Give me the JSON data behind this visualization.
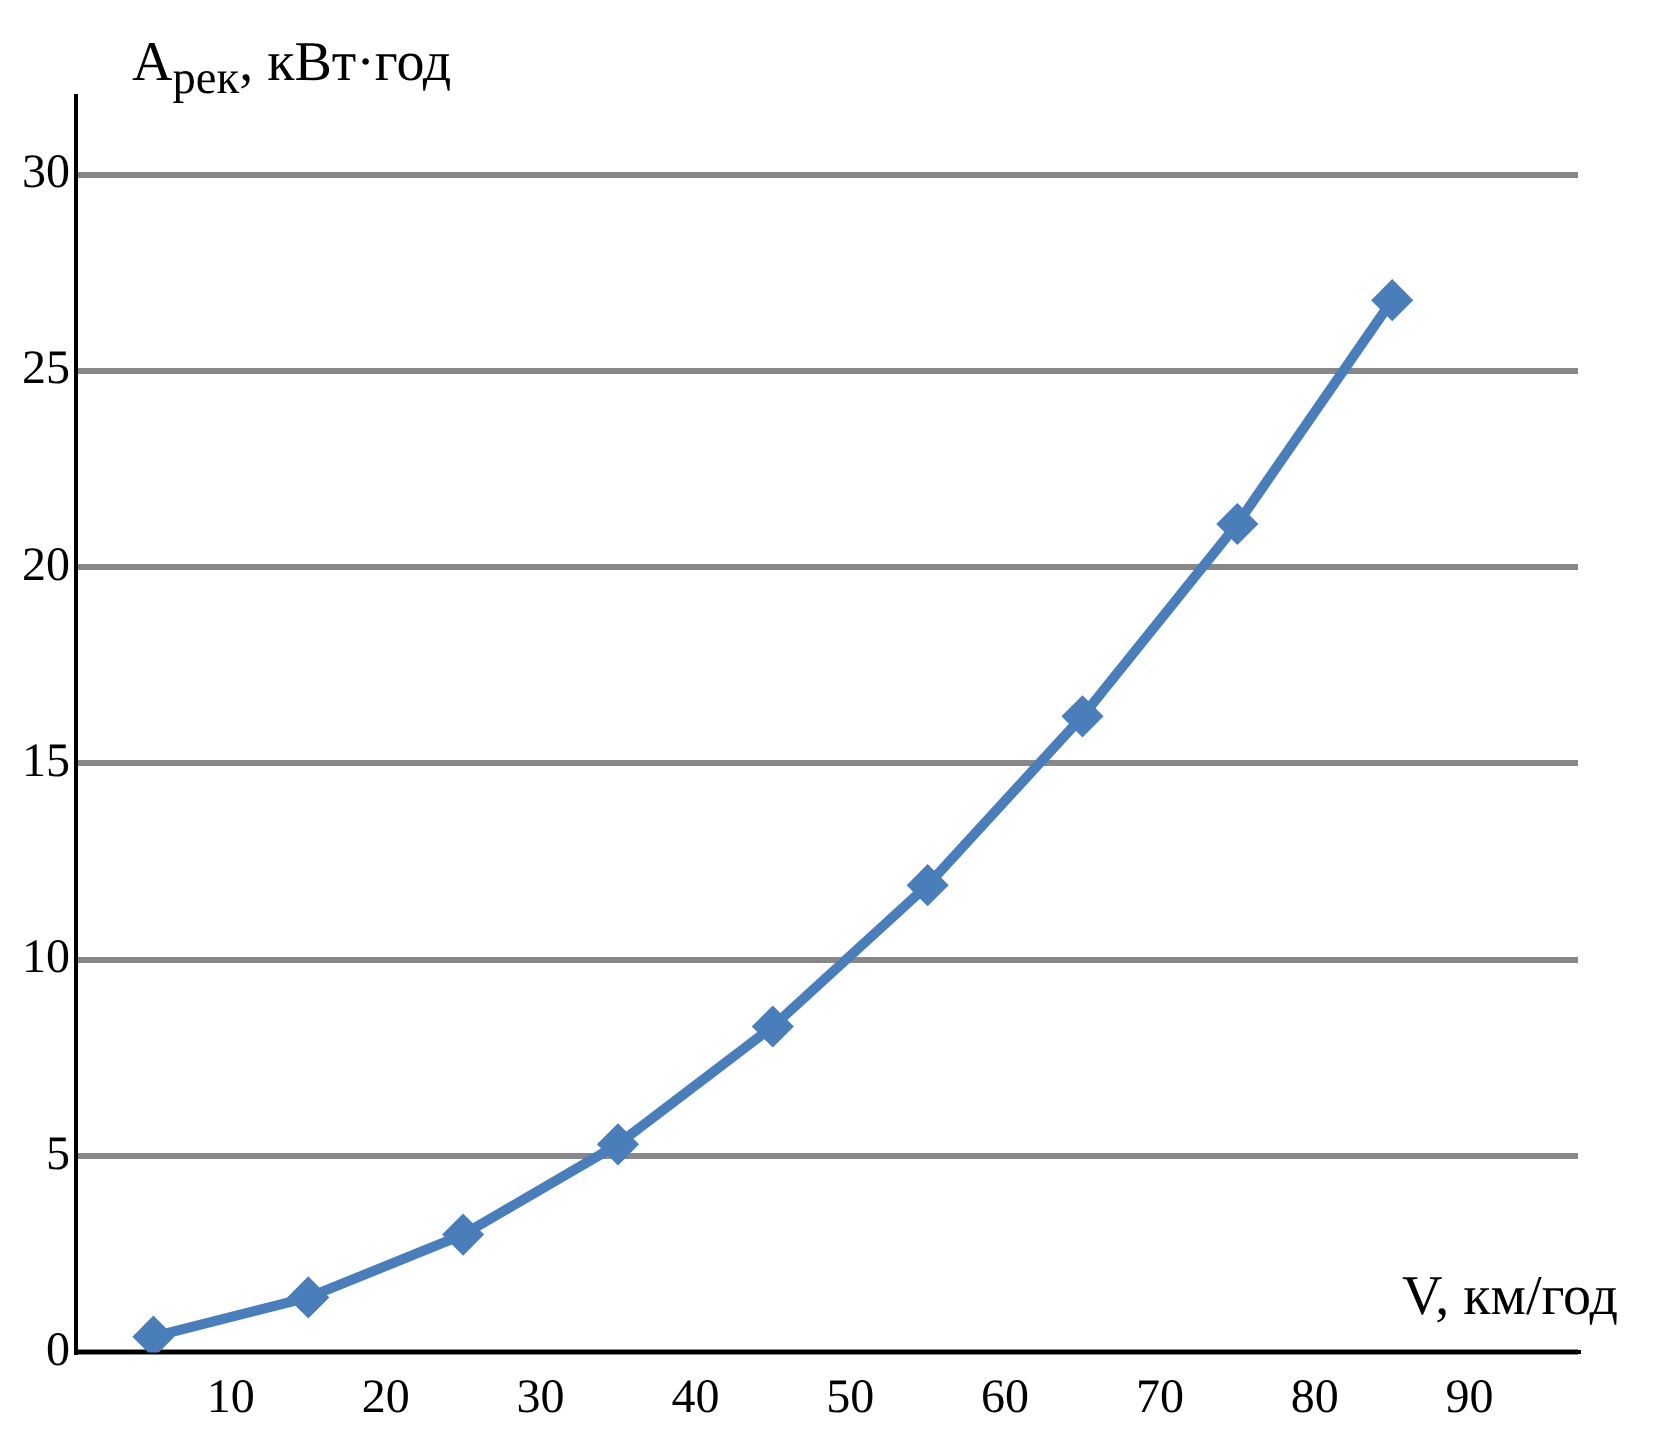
{
  "chart_data": {
    "type": "line",
    "xlabel": "V, км/год",
    "ylabel": "A$_{рек}$, кВт·год",
    "x": [
      5,
      15,
      25,
      35,
      45,
      55,
      65,
      75,
      85
    ],
    "series": [
      {
        "color": "#4a7ebb",
        "values": [
          0.4,
          1.4,
          3.0,
          5.3,
          8.3,
          11.9,
          16.2,
          21.1,
          26.8
        ]
      }
    ],
    "xlim": [
      0,
      97
    ],
    "xticks": [
      10,
      20,
      30,
      40,
      50,
      60,
      70,
      80,
      90
    ],
    "ylim": [
      0,
      32
    ],
    "yticks": [
      0,
      5,
      10,
      15,
      20,
      25,
      30
    ],
    "grid": "y",
    "marker": "diamond",
    "line_style": "solid",
    "legend": false
  }
}
